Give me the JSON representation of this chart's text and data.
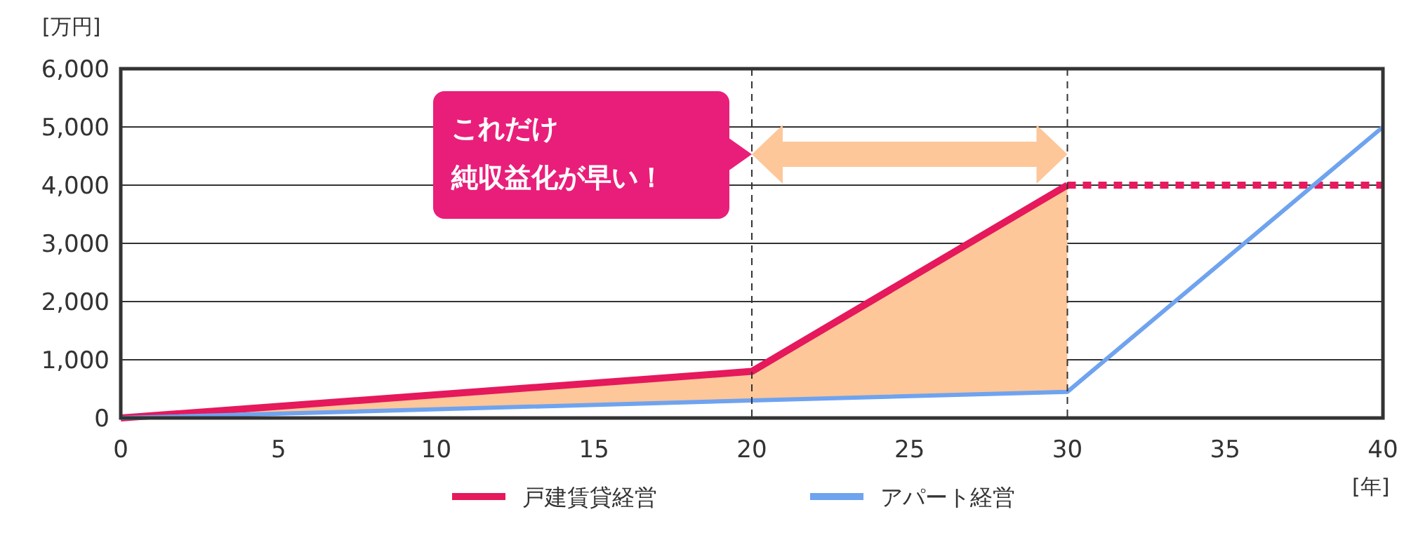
{
  "chart_data": {
    "type": "line",
    "ylabel": "[万円]",
    "xlabel": "[年]",
    "xlim": [
      0,
      40
    ],
    "xticks": [
      0,
      5,
      10,
      15,
      20,
      25,
      30,
      35,
      40
    ],
    "ylim": [
      0,
      6000
    ],
    "yticks": [
      0,
      {
        "value": 1000,
        "label": "1,000"
      },
      {
        "value": 2000,
        "label": "2,000"
      },
      {
        "value": 3000,
        "label": "3,000"
      },
      {
        "value": 4000,
        "label": "4,000"
      },
      {
        "value": 5000,
        "label": "5,000"
      },
      {
        "value": 6000,
        "label": "6,000"
      }
    ],
    "grid": "y",
    "legend": "bottom",
    "series": [
      {
        "name": "戸建賃貸経営",
        "color": "#e5195b",
        "x": [
          0,
          20,
          30
        ],
        "values": [
          0,
          800,
          4000
        ],
        "lower": [
          0,
          300,
          450
        ],
        "upper": [
          0,
          800,
          4000
        ],
        "line_style": "solid"
      },
      {
        "color": "#e8195e",
        "x": [
          30,
          40
        ],
        "values": [
          4000,
          4000
        ],
        "line_style": "dotted"
      },
      {
        "name": "アパート経営",
        "color": "#6fa3ef",
        "x": [
          0,
          20,
          30,
          40
        ],
        "values": [
          0,
          300,
          450,
          5000
        ],
        "line_style": "solid"
      }
    ],
    "ref_lines": [
      {
        "axis": "x",
        "value": 20,
        "color": "#333333",
        "line_style": "dashed"
      },
      {
        "axis": "x",
        "value": 30,
        "color": "#333333",
        "line_style": "dashed"
      }
    ],
    "annotations": [
      "これだけ",
      "純収益化が早い！"
    ]
  }
}
